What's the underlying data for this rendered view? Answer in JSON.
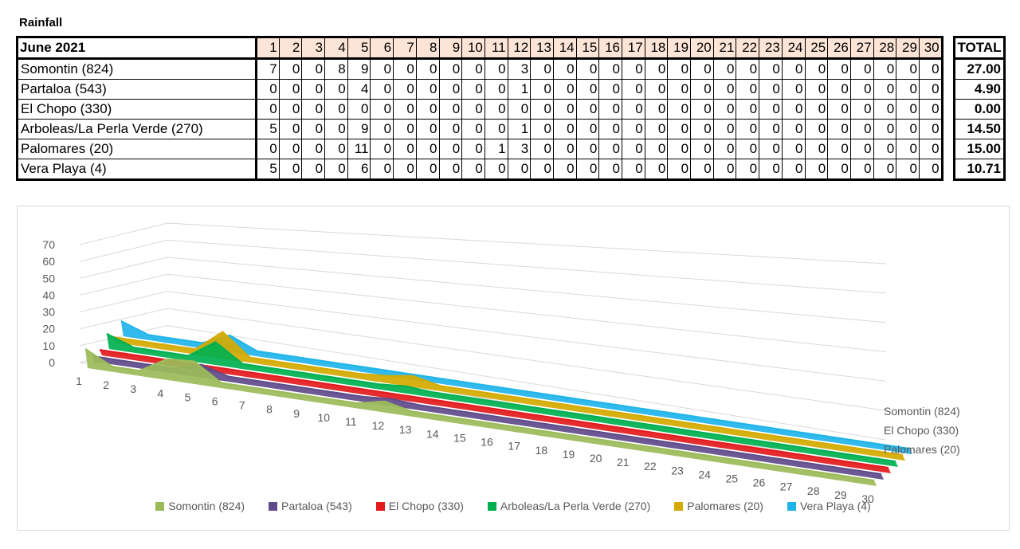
{
  "title": "Rainfall",
  "table": {
    "corner": "June 2021",
    "days": [
      "1",
      "2",
      "3",
      "4",
      "5",
      "6",
      "7",
      "8",
      "9",
      "10",
      "11",
      "12",
      "13",
      "14",
      "15",
      "16",
      "17",
      "18",
      "19",
      "20",
      "21",
      "22",
      "23",
      "24",
      "25",
      "26",
      "27",
      "28",
      "29",
      "30"
    ],
    "total_header": "TOTAL",
    "rows": [
      {
        "name": "Somontin (824)",
        "values": [
          7,
          0,
          0,
          8,
          9,
          0,
          0,
          0,
          0,
          0,
          0,
          3,
          0,
          0,
          0,
          0,
          0,
          0,
          0,
          0,
          0,
          0,
          0,
          0,
          0,
          0,
          0,
          0,
          0,
          0
        ],
        "total": "27.00"
      },
      {
        "name": "Partaloa (543)",
        "values": [
          0,
          0,
          0,
          0,
          4,
          0,
          0,
          0,
          0,
          0,
          0,
          1,
          0,
          0,
          0,
          0,
          0,
          0,
          0,
          0,
          0,
          0,
          0,
          0,
          0,
          0,
          0,
          0,
          0,
          0
        ],
        "total": "4.90"
      },
      {
        "name": "El Chopo (330)",
        "values": [
          0,
          0,
          0,
          0,
          0,
          0,
          0,
          0,
          0,
          0,
          0,
          0,
          0,
          0,
          0,
          0,
          0,
          0,
          0,
          0,
          0,
          0,
          0,
          0,
          0,
          0,
          0,
          0,
          0,
          0
        ],
        "total": "0.00"
      },
      {
        "name": "Arboleas/La Perla Verde (270)",
        "values": [
          5,
          0,
          0,
          0,
          9,
          0,
          0,
          0,
          0,
          0,
          0,
          1,
          0,
          0,
          0,
          0,
          0,
          0,
          0,
          0,
          0,
          0,
          0,
          0,
          0,
          0,
          0,
          0,
          0,
          0
        ],
        "total": "14.50"
      },
      {
        "name": "Palomares (20)",
        "values": [
          0,
          0,
          0,
          0,
          11,
          0,
          0,
          0,
          0,
          0,
          1,
          3,
          0,
          0,
          0,
          0,
          0,
          0,
          0,
          0,
          0,
          0,
          0,
          0,
          0,
          0,
          0,
          0,
          0,
          0
        ],
        "total": "15.00"
      },
      {
        "name": "Vera Playa (4)",
        "values": [
          5,
          0,
          0,
          0,
          6,
          0,
          0,
          0,
          0,
          0,
          0,
          0,
          0,
          0,
          0,
          0,
          0,
          0,
          0,
          0,
          0,
          0,
          0,
          0,
          0,
          0,
          0,
          0,
          0,
          0
        ],
        "total": "10.71"
      }
    ]
  },
  "chart_data": {
    "type": "area",
    "style": "3d",
    "categories": [
      "1",
      "2",
      "3",
      "4",
      "5",
      "6",
      "7",
      "8",
      "9",
      "10",
      "11",
      "12",
      "13",
      "14",
      "15",
      "16",
      "17",
      "18",
      "19",
      "20",
      "21",
      "22",
      "23",
      "24",
      "25",
      "26",
      "27",
      "28",
      "29",
      "30"
    ],
    "y_ticks": [
      "0",
      "10",
      "20",
      "30",
      "40",
      "50",
      "60",
      "70"
    ],
    "ylim": [
      0,
      70
    ],
    "depth_labels": [
      "Somontin (824)",
      "El Chopo (330)",
      "Palomares (20)"
    ],
    "grid": true,
    "legend_position": "bottom",
    "series": [
      {
        "name": "Somontin (824)",
        "color": "#9bbb59",
        "values": [
          7,
          0,
          0,
          8,
          9,
          0,
          0,
          0,
          0,
          0,
          0,
          3,
          0,
          0,
          0,
          0,
          0,
          0,
          0,
          0,
          0,
          0,
          0,
          0,
          0,
          0,
          0,
          0,
          0,
          0
        ]
      },
      {
        "name": "Partaloa (543)",
        "color": "#5f4b8b",
        "values": [
          0,
          0,
          0,
          0,
          4,
          0,
          0,
          0,
          0,
          0,
          0,
          1,
          0,
          0,
          0,
          0,
          0,
          0,
          0,
          0,
          0,
          0,
          0,
          0,
          0,
          0,
          0,
          0,
          0,
          0
        ]
      },
      {
        "name": "El Chopo (330)",
        "color": "#e31a1c",
        "values": [
          0,
          0,
          0,
          0,
          0,
          0,
          0,
          0,
          0,
          0,
          0,
          0,
          0,
          0,
          0,
          0,
          0,
          0,
          0,
          0,
          0,
          0,
          0,
          0,
          0,
          0,
          0,
          0,
          0,
          0
        ]
      },
      {
        "name": "Arboleas/La Perla Verde (270)",
        "color": "#00b050",
        "values": [
          5,
          0,
          0,
          0,
          9,
          0,
          0,
          0,
          0,
          0,
          0,
          1,
          0,
          0,
          0,
          0,
          0,
          0,
          0,
          0,
          0,
          0,
          0,
          0,
          0,
          0,
          0,
          0,
          0,
          0
        ]
      },
      {
        "name": "Palomares (20)",
        "color": "#d4aa00",
        "values": [
          0,
          0,
          0,
          0,
          11,
          0,
          0,
          0,
          0,
          0,
          1,
          3,
          0,
          0,
          0,
          0,
          0,
          0,
          0,
          0,
          0,
          0,
          0,
          0,
          0,
          0,
          0,
          0,
          0,
          0
        ]
      },
      {
        "name": "Vera Playa (4)",
        "color": "#1fb4e9",
        "values": [
          5,
          0,
          0,
          0,
          6,
          0,
          0,
          0,
          0,
          0,
          0,
          0,
          0,
          0,
          0,
          0,
          0,
          0,
          0,
          0,
          0,
          0,
          0,
          0,
          0,
          0,
          0,
          0,
          0,
          0
        ]
      }
    ]
  }
}
